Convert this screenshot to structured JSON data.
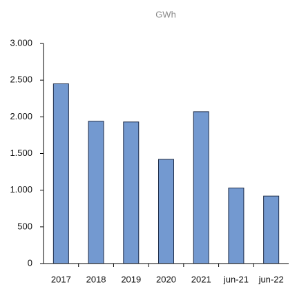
{
  "chart_data": {
    "type": "bar",
    "title": "GWh",
    "categories": [
      "2017",
      "2018",
      "2019",
      "2020",
      "2021",
      "jun-21",
      "jun-22"
    ],
    "values": [
      2450,
      1940,
      1930,
      1420,
      2070,
      1030,
      920
    ],
    "color": "#7399d0",
    "ylim": [
      0,
      3000
    ],
    "yticks": [
      0,
      500,
      {
        "value": 1000,
        "label": "1.000"
      },
      {
        "value": 1500,
        "label": "1.500"
      },
      {
        "value": 2000,
        "label": "2.000"
      },
      {
        "value": 2500,
        "label": "2.500"
      },
      {
        "value": 3000,
        "label": "3.000"
      }
    ],
    "grid": false
  }
}
